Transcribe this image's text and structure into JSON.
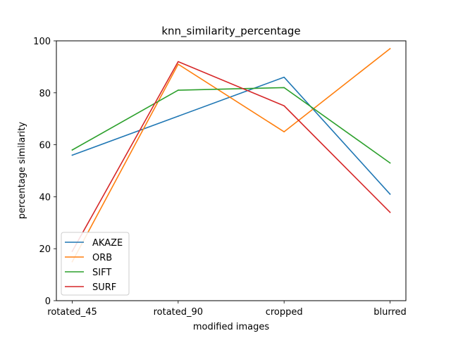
{
  "chart_data": {
    "type": "line",
    "title": "knn_similarity_percentage",
    "xlabel": "modified images",
    "ylabel": "percentage similarity",
    "categories": [
      "rotated_45",
      "rotated_90",
      "cropped",
      "blurred"
    ],
    "ylim": [
      0,
      100
    ],
    "yticks": [
      0,
      20,
      40,
      60,
      80,
      100
    ],
    "grid": false,
    "legend_position": "lower-left",
    "series": [
      {
        "name": "AKAZE",
        "color": "#1f77b4",
        "values": [
          56,
          71,
          86,
          41
        ]
      },
      {
        "name": "ORB",
        "color": "#ff7f0e",
        "values": [
          15,
          91,
          65,
          97
        ]
      },
      {
        "name": "SIFT",
        "color": "#2ca02c",
        "values": [
          58,
          81,
          82,
          53
        ]
      },
      {
        "name": "SURF",
        "color": "#d62728",
        "values": [
          19,
          92,
          75,
          34
        ]
      }
    ]
  }
}
